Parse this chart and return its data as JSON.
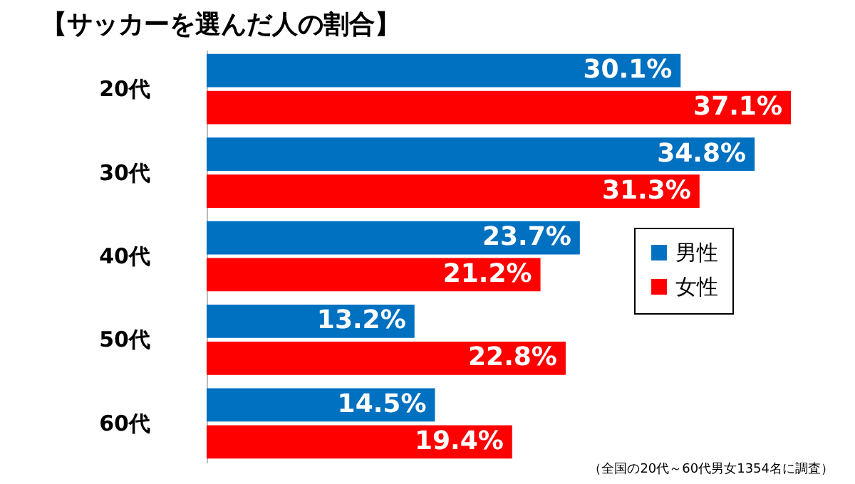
{
  "chart_data": {
    "type": "bar",
    "orientation": "horizontal",
    "title": "【サッカーを選んだ人の割合】",
    "categories": [
      "20代",
      "30代",
      "40代",
      "50代",
      "60代"
    ],
    "series": [
      {
        "name": "男性",
        "color": "#0070c0",
        "values": [
          30.1,
          34.8,
          23.7,
          13.2,
          14.5
        ],
        "value_labels": [
          "30.1%",
          "34.8%",
          "23.7%",
          "13.2%",
          "14.5%"
        ]
      },
      {
        "name": "女性",
        "color": "#ff0000",
        "values": [
          37.1,
          31.3,
          21.2,
          22.8,
          19.4
        ],
        "value_labels": [
          "37.1%",
          "31.3%",
          "21.2%",
          "22.8%",
          "19.4%"
        ]
      }
    ],
    "legend": "right",
    "annotations": [
      "（全国の20代～60代男女1354名に調査）"
    ]
  }
}
